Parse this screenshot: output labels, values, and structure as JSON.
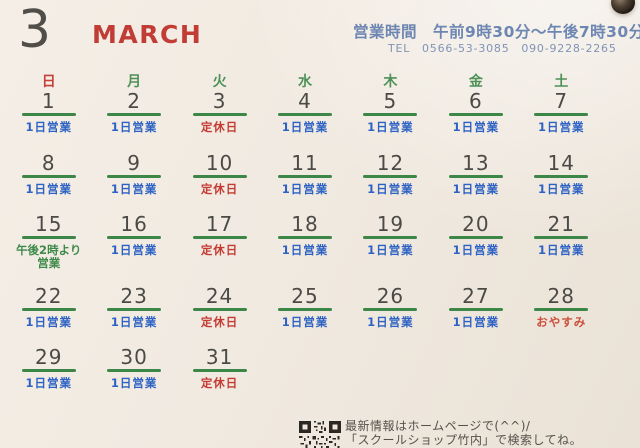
{
  "header": {
    "month_number": "3",
    "month_name": "MARCH",
    "hours": "営業時間　午前9時30分～午後7時30分",
    "tel": "TEL　0566-53-3085　090-9228-2265"
  },
  "weekdays": [
    "日",
    "月",
    "火",
    "水",
    "木",
    "金",
    "土"
  ],
  "calendar": {
    "weeks": [
      [
        {
          "date": "1",
          "status": "1日営業",
          "type": "open"
        },
        {
          "date": "2",
          "status": "1日営業",
          "type": "open"
        },
        {
          "date": "3",
          "status": "定休日",
          "type": "closed"
        },
        {
          "date": "4",
          "status": "1日営業",
          "type": "open"
        },
        {
          "date": "5",
          "status": "1日営業",
          "type": "open"
        },
        {
          "date": "6",
          "status": "1日営業",
          "type": "open"
        },
        {
          "date": "7",
          "status": "1日営業",
          "type": "open"
        }
      ],
      [
        {
          "date": "8",
          "status": "1日営業",
          "type": "open"
        },
        {
          "date": "9",
          "status": "1日営業",
          "type": "open"
        },
        {
          "date": "10",
          "status": "定休日",
          "type": "closed"
        },
        {
          "date": "11",
          "status": "1日営業",
          "type": "open"
        },
        {
          "date": "12",
          "status": "1日営業",
          "type": "open"
        },
        {
          "date": "13",
          "status": "1日営業",
          "type": "open"
        },
        {
          "date": "14",
          "status": "1日営業",
          "type": "open"
        }
      ],
      [
        {
          "date": "15",
          "status": "午後2時より\n営業",
          "type": "afternoon"
        },
        {
          "date": "16",
          "status": "1日営業",
          "type": "open"
        },
        {
          "date": "17",
          "status": "定休日",
          "type": "closed"
        },
        {
          "date": "18",
          "status": "1日営業",
          "type": "open"
        },
        {
          "date": "19",
          "status": "1日営業",
          "type": "open"
        },
        {
          "date": "20",
          "status": "1日営業",
          "type": "open"
        },
        {
          "date": "21",
          "status": "1日営業",
          "type": "open"
        }
      ],
      [
        {
          "date": "22",
          "status": "1日営業",
          "type": "open"
        },
        {
          "date": "23",
          "status": "1日営業",
          "type": "open"
        },
        {
          "date": "24",
          "status": "定休日",
          "type": "closed"
        },
        {
          "date": "25",
          "status": "1日営業",
          "type": "open"
        },
        {
          "date": "26",
          "status": "1日営業",
          "type": "open"
        },
        {
          "date": "27",
          "status": "1日営業",
          "type": "open"
        },
        {
          "date": "28",
          "status": "おやすみ",
          "type": "rest"
        }
      ],
      [
        {
          "date": "29",
          "status": "1日営業",
          "type": "open"
        },
        {
          "date": "30",
          "status": "1日営業",
          "type": "open"
        },
        {
          "date": "31",
          "status": "定休日",
          "type": "closed"
        },
        null,
        null,
        null,
        null
      ]
    ]
  },
  "footer": {
    "line1": "最新情報はホームページで(^^)/",
    "line2": "「スクールショップ竹内」で検索してね。",
    "qr_icon": "qr-code"
  },
  "colors": {
    "accent_red": "#c23c36",
    "date_gray": "#4b4a46",
    "underline_green": "#3c8747",
    "weekday_green": "#4e9158",
    "weekday_sunday_red": "#c2423a",
    "hours_blue": "#6e86b2",
    "tel_blue": "#8094b8",
    "status_open": "#2d62c4",
    "status_closed": "#c43b33",
    "status_afternoon": "#3f8a4a",
    "status_rest": "#cb4f3c"
  }
}
